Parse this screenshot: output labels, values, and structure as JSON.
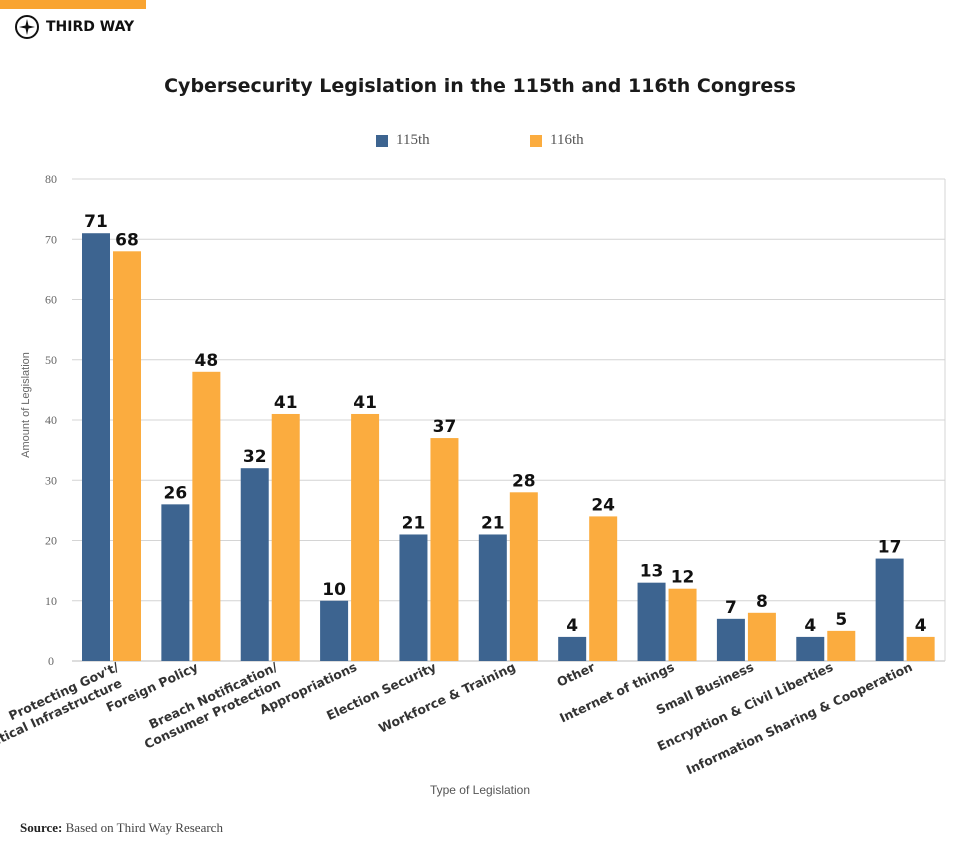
{
  "brand": {
    "name": "THIRD WAY",
    "accent": "#f9a431"
  },
  "source": {
    "label": "Source:",
    "text": "Based on Third Way Research"
  },
  "chart_data": {
    "type": "bar",
    "title": "Cybersecurity Legislation in the 115th and 116th Congress",
    "xlabel": "Type of Legislation",
    "ylabel": "Amount of Legislation",
    "ylim": [
      0,
      80
    ],
    "yticks": [
      0,
      10,
      20,
      30,
      40,
      50,
      60,
      70,
      80
    ],
    "grid": true,
    "legend": "top-center",
    "categories": [
      [
        "Protecting Gov't/",
        "Critical Infrastructure"
      ],
      [
        "Foreign Policy"
      ],
      [
        "Breach Notification/",
        "Consumer Protection"
      ],
      [
        "Appropriations"
      ],
      [
        "Election Security"
      ],
      [
        "Workforce & Training"
      ],
      [
        "Other"
      ],
      [
        "Internet of things"
      ],
      [
        "Small Business"
      ],
      [
        "Encryption & Civil Liberties"
      ],
      [
        "Information Sharing & Cooperation"
      ]
    ],
    "series": [
      {
        "name": "115th",
        "color": "#3d6490",
        "values": [
          71,
          26,
          32,
          10,
          21,
          21,
          4,
          13,
          7,
          4,
          17
        ]
      },
      {
        "name": "116th",
        "color": "#fbac3f",
        "values": [
          68,
          48,
          41,
          41,
          37,
          28,
          24,
          12,
          8,
          5,
          4
        ]
      }
    ]
  }
}
